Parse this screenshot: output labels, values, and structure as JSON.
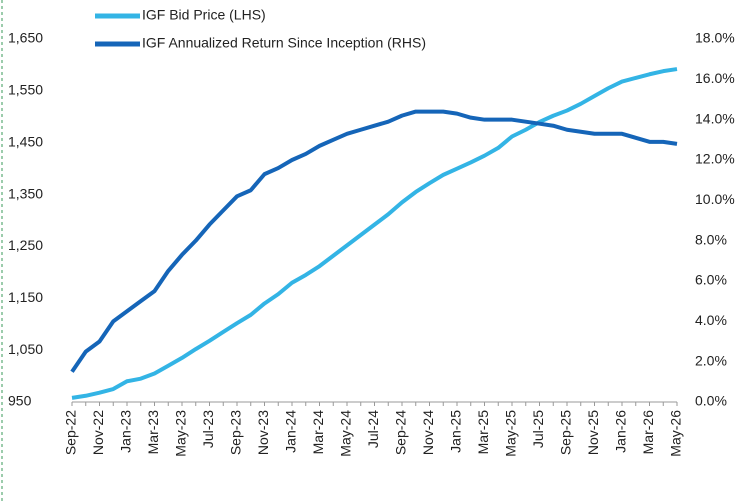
{
  "chart_data": {
    "type": "line",
    "categories": [
      "Sep-22",
      null,
      "Nov-22",
      null,
      "Jan-23",
      null,
      "Mar-23",
      null,
      "May-23",
      null,
      "Jul-23",
      null,
      "Sep-23",
      null,
      "Nov-23",
      null,
      "Jan-24",
      null,
      "Mar-24",
      null,
      "May-24",
      null,
      "Jul-24",
      null,
      "Sep-24",
      null,
      "Nov-24",
      null,
      "Jan-25",
      null,
      "Mar-25",
      null,
      "May-25",
      null,
      "Jul-25",
      null,
      "Sep-25",
      null,
      "Nov-25",
      null,
      "Jan-26",
      null,
      "Mar-26",
      null,
      "May-26"
    ],
    "series": [
      {
        "name": "IGF Bid Price (LHS)",
        "color": "#33b4e5",
        "values": [
          958,
          962,
          968,
          975,
          990,
          995,
          1005,
          1020,
          1035,
          1052,
          1068,
          1085,
          1102,
          1118,
          1140,
          1158,
          1180,
          1195,
          1212,
          1232,
          1252,
          1272,
          1292,
          1312,
          1335,
          1355,
          1372,
          1388,
          1400,
          1412,
          1425,
          1440,
          1462,
          1475,
          1490,
          1502,
          1512,
          1525,
          1540,
          1555,
          1568,
          1575,
          1582,
          1588,
          1592
        ]
      },
      {
        "name": "IGF Annualized Return Since Inception (RHS)",
        "color": "#1565b8",
        "axis": "y2",
        "values": [
          1.5,
          2.5,
          3.0,
          4.0,
          4.5,
          5.0,
          5.5,
          6.5,
          7.3,
          8.0,
          8.8,
          9.5,
          10.2,
          10.5,
          11.3,
          11.6,
          12.0,
          12.3,
          12.7,
          13.0,
          13.3,
          13.5,
          13.7,
          13.9,
          14.2,
          14.4,
          14.4,
          14.4,
          14.3,
          14.1,
          14.0,
          14.0,
          14.0,
          13.9,
          13.8,
          13.7,
          13.5,
          13.4,
          13.3,
          13.3,
          13.3,
          13.1,
          12.9,
          12.9,
          12.8
        ]
      }
    ],
    "ylim": [
      950,
      1650
    ],
    "yticks": [
      950,
      {
        "value": 1050,
        "label": "1,050"
      },
      {
        "value": 1150,
        "label": "1,150"
      },
      {
        "value": 1250,
        "label": "1,250"
      },
      {
        "value": 1350,
        "label": "1,350"
      },
      {
        "value": 1450,
        "label": "1,450"
      },
      {
        "value": 1550,
        "label": "1,550"
      },
      {
        "value": 1650,
        "label": "1,650"
      }
    ],
    "y2lim": [
      0,
      18
    ],
    "y2ticks": [
      {
        "value": 0,
        "label": "0.0%"
      },
      {
        "value": 2,
        "label": "2.0%"
      },
      {
        "value": 4,
        "label": "4.0%"
      },
      {
        "value": 6,
        "label": "6.0%"
      },
      {
        "value": 8,
        "label": "8.0%"
      },
      {
        "value": 10,
        "label": "10.0%"
      },
      {
        "value": 12,
        "label": "12.0%"
      },
      {
        "value": 14,
        "label": "14.0%"
      },
      {
        "value": 16,
        "label": "16.0%"
      },
      {
        "value": 18,
        "label": "18.0%"
      }
    ]
  }
}
